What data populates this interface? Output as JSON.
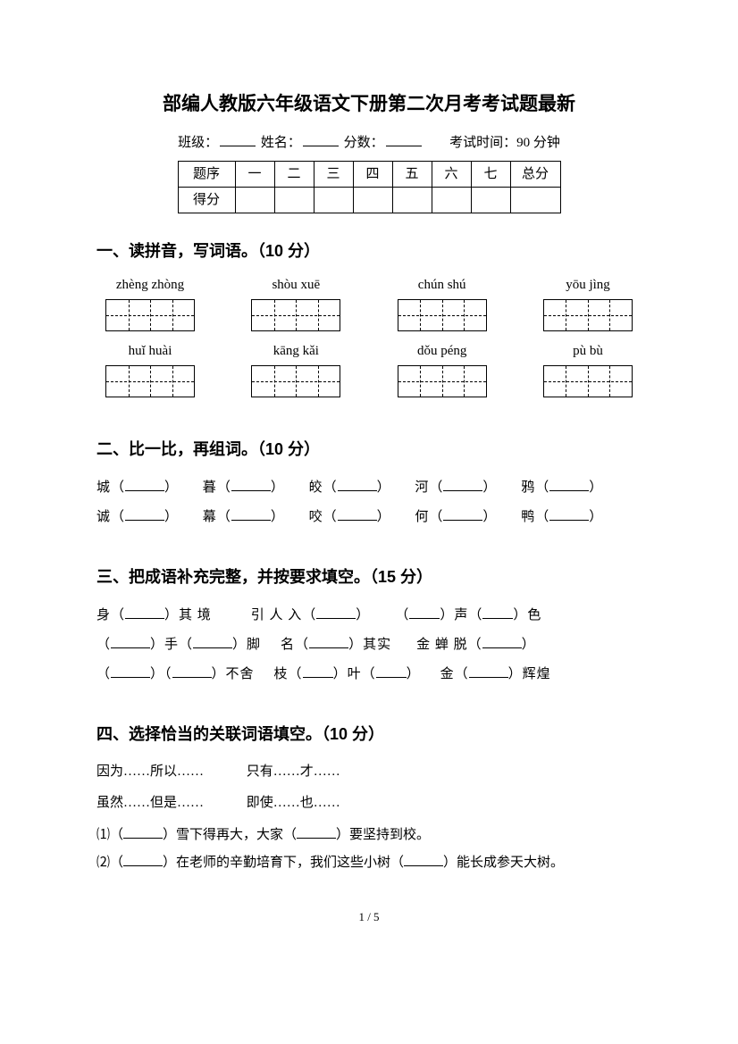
{
  "title": "部编人教版六年级语文下册第二次月考考试题最新",
  "header": {
    "class_label": "班级：",
    "name_label": "姓名：",
    "score_label": "分数：",
    "time_label": "考试时间：90 分钟"
  },
  "score_table": {
    "row1_label": "题序",
    "cols": [
      "一",
      "二",
      "三",
      "四",
      "五",
      "六",
      "七"
    ],
    "total_label": "总分",
    "row2_label": "得分"
  },
  "section1": {
    "heading": "一、读拼音，写词语。（10 分）",
    "row1": [
      "zhèng zhòng",
      "shòu xuē",
      "chún shú",
      "yōu jìng"
    ],
    "row2": [
      "huǐ huài",
      "kāng kǎi",
      "dǒu péng",
      "pù bù"
    ]
  },
  "section2": {
    "heading": "二、比一比，再组词。（10 分）",
    "line1": [
      {
        "char": "城"
      },
      {
        "char": "暮"
      },
      {
        "char": "皎"
      },
      {
        "char": "河"
      },
      {
        "char": "鸦"
      }
    ],
    "line2": [
      {
        "char": "诚"
      },
      {
        "char": "幕"
      },
      {
        "char": "咬"
      },
      {
        "char": "何"
      },
      {
        "char": "鸭"
      }
    ]
  },
  "section3": {
    "heading": "三、把成语补充完整，并按要求填空。（15 分）",
    "lines": [
      [
        {
          "t": "身（"
        },
        {
          "b": 44
        },
        {
          "t": "）其 境"
        },
        {
          "sp": 44
        },
        {
          "t": "引 人 入（"
        },
        {
          "b": 44
        },
        {
          "t": "）"
        },
        {
          "sp": 28
        },
        {
          "t": "（"
        },
        {
          "b": 34
        },
        {
          "t": "）声（"
        },
        {
          "b": 34
        },
        {
          "t": "）色"
        }
      ],
      [
        {
          "t": "（"
        },
        {
          "b": 44
        },
        {
          "t": "）手（"
        },
        {
          "b": 44
        },
        {
          "t": "）脚"
        },
        {
          "sp": 22
        },
        {
          "t": "名（"
        },
        {
          "b": 44
        },
        {
          "t": "）其实"
        },
        {
          "sp": 28
        },
        {
          "t": "金 蝉 脱（"
        },
        {
          "b": 44
        },
        {
          "t": "）"
        }
      ],
      [
        {
          "t": "（"
        },
        {
          "b": 44
        },
        {
          "t": "）（"
        },
        {
          "b": 44
        },
        {
          "t": "）不舍"
        },
        {
          "sp": 22
        },
        {
          "t": "枝（"
        },
        {
          "b": 34
        },
        {
          "t": "）叶（"
        },
        {
          "b": 34
        },
        {
          "t": "）"
        },
        {
          "sp": 22
        },
        {
          "t": "金（"
        },
        {
          "b": 44
        },
        {
          "t": "）辉煌"
        }
      ]
    ]
  },
  "section4": {
    "heading": "四、选择恰当的关联词语填空。（10 分）",
    "options_row1": [
      "因为……所以……",
      "只有……才……"
    ],
    "options_row2": [
      "虽然……但是……",
      "即使……也……"
    ],
    "sent1_parts": [
      "⑴（",
      "）雪下得再大，大家（",
      "）要坚持到校。"
    ],
    "sent2_parts": [
      "⑵（",
      "）在老师的辛勤培育下，我们这些小树（",
      "）能长成参天大树。"
    ]
  },
  "page_number": "1 / 5"
}
